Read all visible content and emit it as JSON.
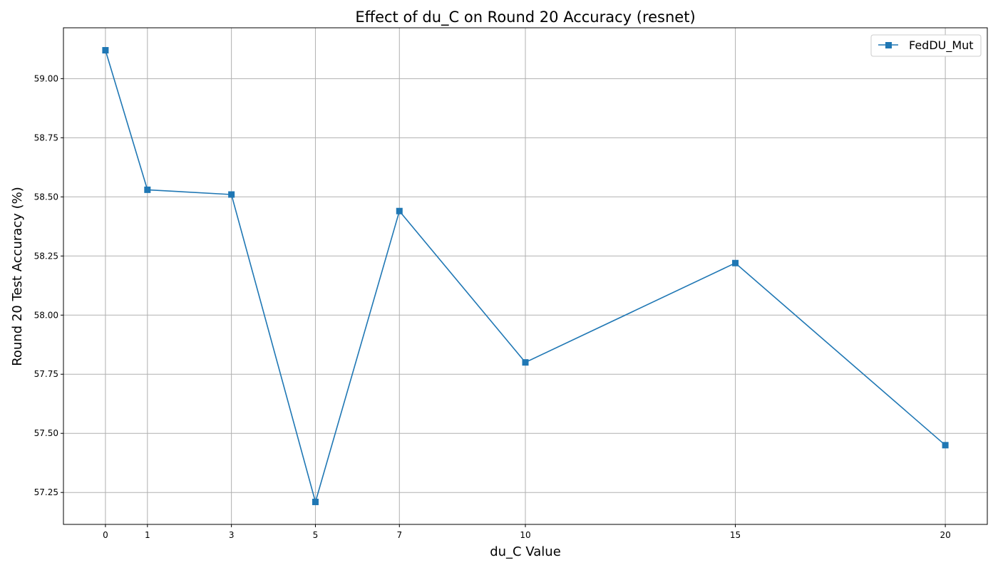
{
  "chart_data": {
    "type": "line",
    "title": "Effect of du_C on Round 20 Accuracy (resnet)",
    "xlabel": "du_C Value",
    "ylabel": "Round 20 Test Accuracy (%)",
    "x": [
      0,
      1,
      3,
      5,
      7,
      10,
      15,
      20
    ],
    "x_tick_labels": [
      "0",
      "1",
      "3",
      "5",
      "7",
      "10",
      "15",
      "20"
    ],
    "y_ticks": [
      57.25,
      57.5,
      57.75,
      58.0,
      58.25,
      58.5,
      58.75,
      59.0
    ],
    "y_tick_labels": [
      "57.25",
      "57.50",
      "57.75",
      "58.00",
      "58.25",
      "58.50",
      "58.75",
      "59.00"
    ],
    "xlim": [
      -1.0,
      21.0
    ],
    "ylim": [
      57.115,
      59.215
    ],
    "grid": true,
    "legend_position": "top-right",
    "series": [
      {
        "name": "FedDU_Mut",
        "color": "#1f77b4",
        "marker": "square",
        "values": [
          59.12,
          58.53,
          58.51,
          57.21,
          58.44,
          57.8,
          58.22,
          57.45
        ]
      }
    ]
  }
}
